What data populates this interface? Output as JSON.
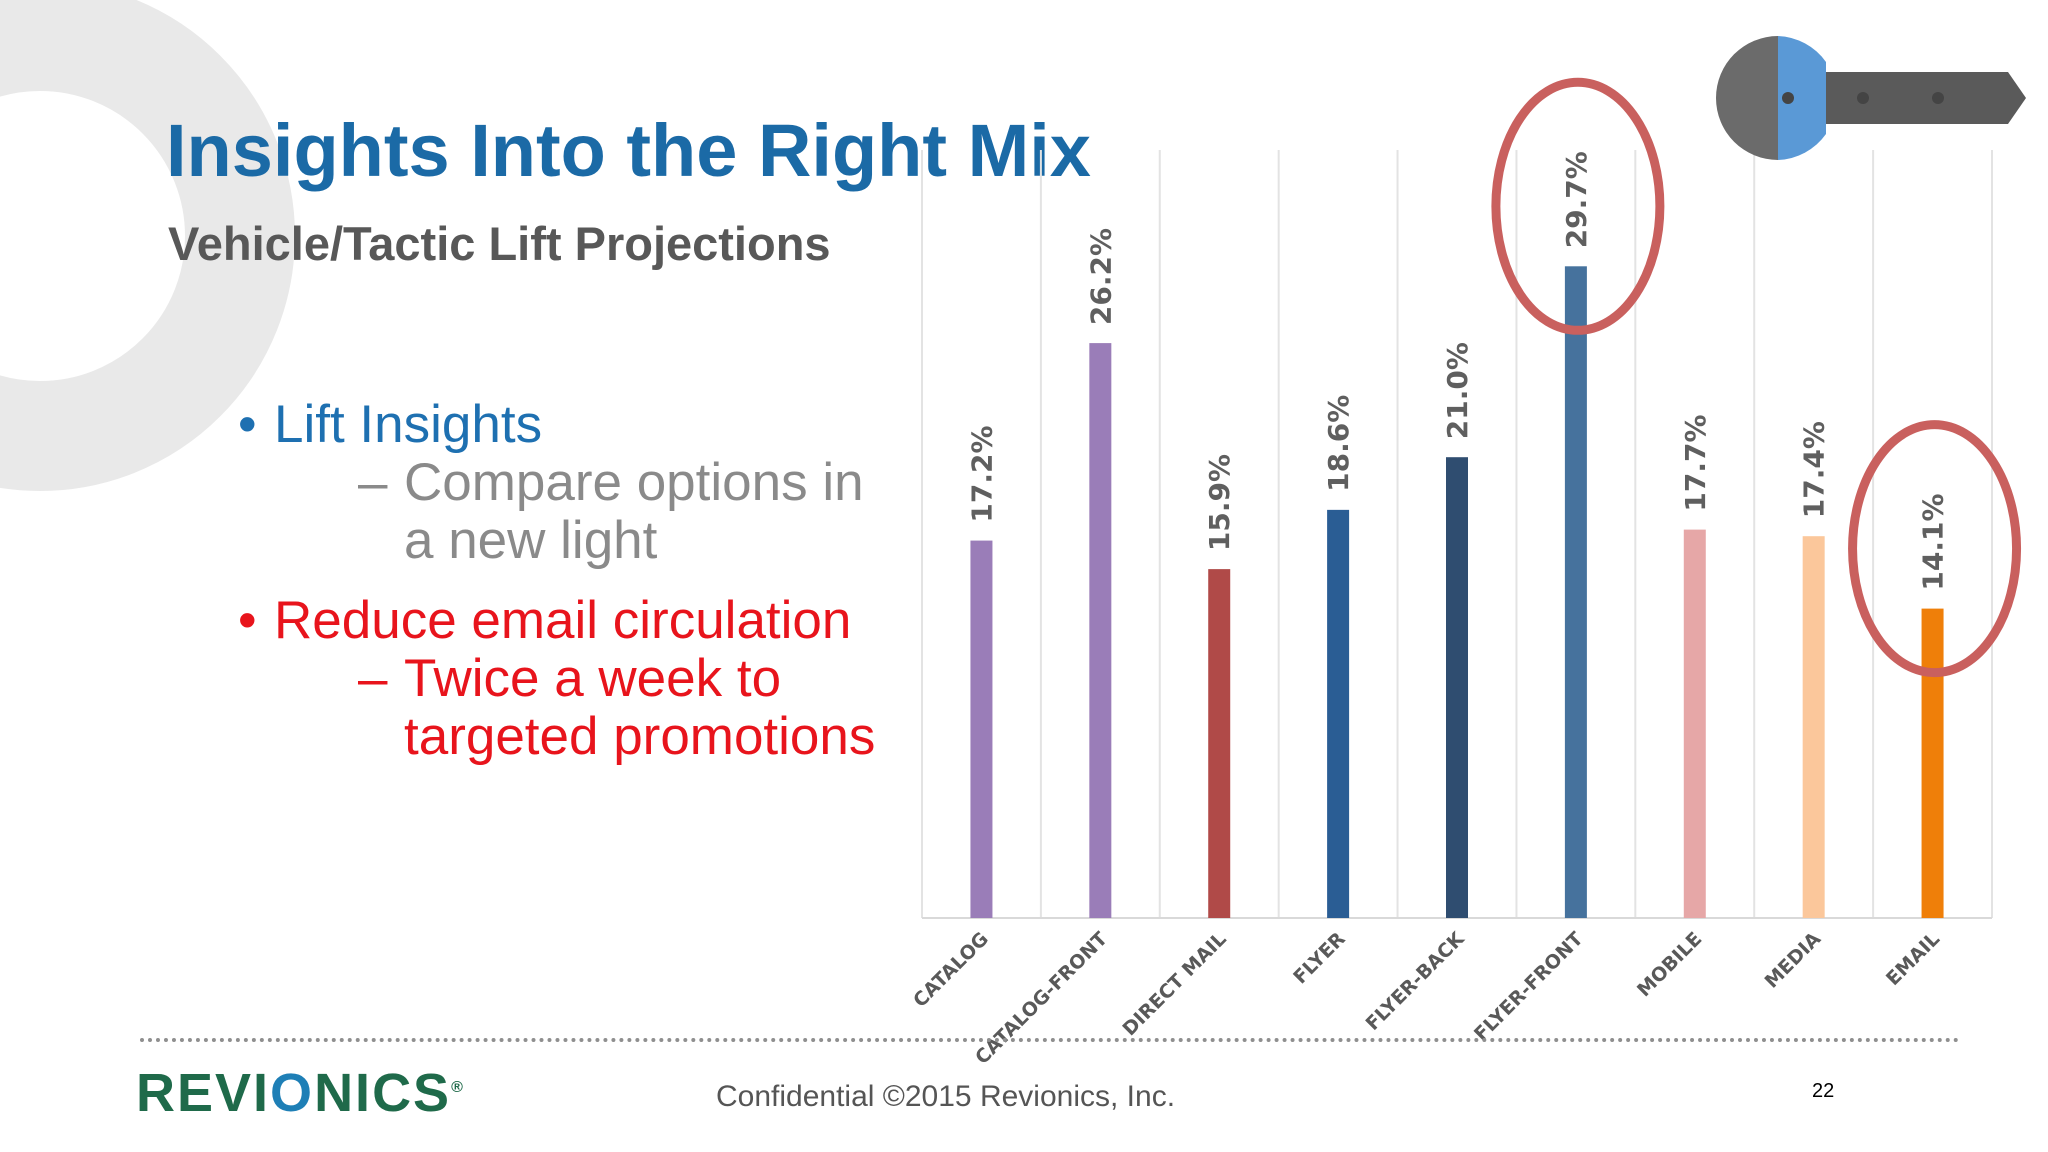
{
  "slide": {
    "title": "Insights Into the Right Mix",
    "subtitle": "Vehicle/Tactic Lift Projections",
    "bullets": [
      {
        "text": "Lift Insights",
        "sub": "Compare options in a new light"
      },
      {
        "text": "Reduce email circulation",
        "sub": "Twice a week to targeted promotions"
      }
    ],
    "bullet_glyph": "•",
    "dash_glyph": "–",
    "footer": "Confidential  ©2015 Revionics, Inc.",
    "page_number": "22",
    "logo": {
      "part1": "REVI",
      "part2": "O",
      "part3": "NICS",
      "mark": "®"
    },
    "icons": [
      "key-icon"
    ]
  },
  "colors": {
    "title": "#1b6aa6",
    "subtitle": "#585858",
    "bullet_blue": "#1e70b1",
    "bullet_red": "#e8141c",
    "highlight_ring": "#c9605e"
  },
  "chart_data": {
    "type": "bar",
    "categories": [
      "CATALOG",
      "CATALOG-FRONT",
      "DIRECT MAIL",
      "FLYER",
      "FLYER-BACK",
      "FLYER-FRONT",
      "MOBILE",
      "MEDIA",
      "EMAIL"
    ],
    "values": [
      17.2,
      26.2,
      15.9,
      18.6,
      21.0,
      29.7,
      17.7,
      17.4,
      14.1
    ],
    "labels": [
      "17.2%",
      "26.2%",
      "15.9%",
      "18.6%",
      "21.0%",
      "29.7%",
      "17.7%",
      "17.4%",
      "14.1%"
    ],
    "colors": [
      "#9a7db8",
      "#9a7db8",
      "#b04a48",
      "#2a5d94",
      "#2f4d70",
      "#46729d",
      "#e6a7a7",
      "#fbc79b",
      "#ef7f09"
    ],
    "ylim": [
      0,
      35
    ],
    "grid": "vertical",
    "highlighted": [
      "FLYER-FRONT",
      "EMAIL"
    ],
    "title": "",
    "xlabel": "",
    "ylabel": ""
  }
}
